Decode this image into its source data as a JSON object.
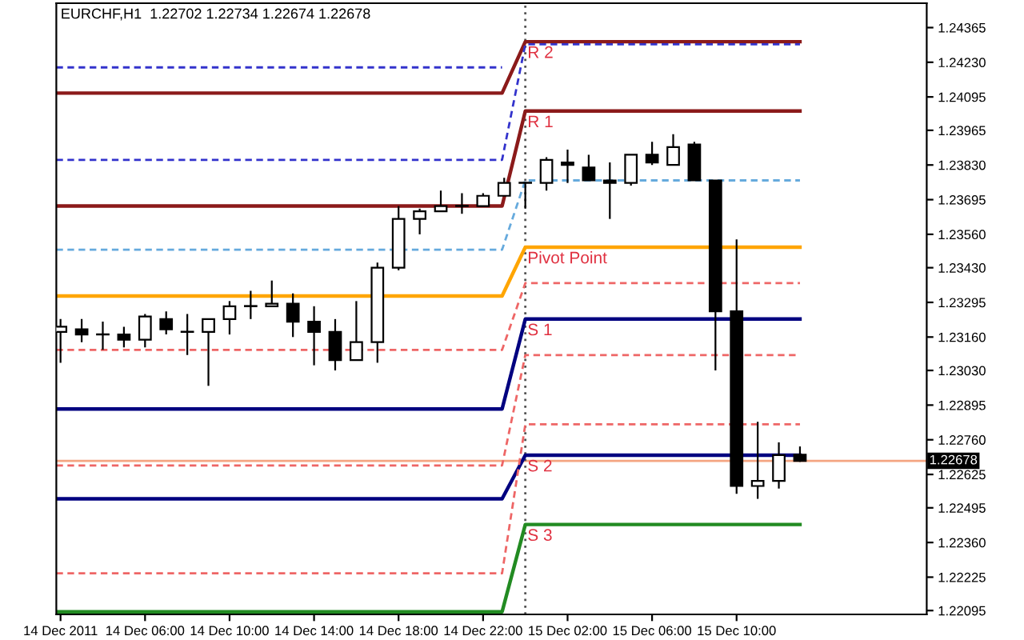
{
  "chart_data": {
    "type": "candlestick",
    "title": "EURCHF,H1  1.22702 1.22734 1.22674 1.22678",
    "x": [
      "2011-12-14T02:00",
      "2011-12-14T03:00",
      "2011-12-14T04:00",
      "2011-12-14T05:00",
      "2011-12-14T06:00",
      "2011-12-14T07:00",
      "2011-12-14T08:00",
      "2011-12-14T09:00",
      "2011-12-14T10:00",
      "2011-12-14T11:00",
      "2011-12-14T12:00",
      "2011-12-14T13:00",
      "2011-12-14T14:00",
      "2011-12-14T15:00",
      "2011-12-14T16:00",
      "2011-12-14T17:00",
      "2011-12-14T18:00",
      "2011-12-14T19:00",
      "2011-12-14T20:00",
      "2011-12-14T21:00",
      "2011-12-14T22:00",
      "2011-12-14T23:00",
      "2011-12-15T00:00",
      "2011-12-15T01:00",
      "2011-12-15T02:00",
      "2011-12-15T03:00",
      "2011-12-15T04:00",
      "2011-12-15T05:00",
      "2011-12-15T06:00",
      "2011-12-15T07:00",
      "2011-12-15T08:00",
      "2011-12-15T09:00",
      "2011-12-15T10:00",
      "2011-12-15T11:00",
      "2011-12-15T12:00",
      "2011-12-15T13:00"
    ],
    "ohlc": [
      [
        1.2318,
        1.2323,
        1.2306,
        1.232
      ],
      [
        1.2319,
        1.2323,
        1.2314,
        1.2317
      ],
      [
        1.2317,
        1.2322,
        1.2311,
        1.2317
      ],
      [
        1.2317,
        1.232,
        1.2312,
        1.2315
      ],
      [
        1.2315,
        1.2325,
        1.2312,
        1.2324
      ],
      [
        1.2323,
        1.2326,
        1.2317,
        1.2319
      ],
      [
        1.2318,
        1.2325,
        1.2309,
        1.2318
      ],
      [
        1.2318,
        1.2323,
        1.2297,
        1.2323
      ],
      [
        1.2323,
        1.233,
        1.2317,
        1.2328
      ],
      [
        1.2328,
        1.2334,
        1.2323,
        1.2328
      ],
      [
        1.2328,
        1.2338,
        1.2328,
        1.2329
      ],
      [
        1.2329,
        1.2333,
        1.2316,
        1.2322
      ],
      [
        1.2322,
        1.2328,
        1.2305,
        1.2318
      ],
      [
        1.2318,
        1.2323,
        1.2303,
        1.2307
      ],
      [
        1.2307,
        1.233,
        1.2307,
        1.2314
      ],
      [
        1.2314,
        1.2345,
        1.2306,
        1.2343
      ],
      [
        1.2343,
        1.2367,
        1.2342,
        1.2362
      ],
      [
        1.2362,
        1.2366,
        1.2356,
        1.2365
      ],
      [
        1.2365,
        1.2373,
        1.2365,
        1.2367
      ],
      [
        1.2367,
        1.2372,
        1.2364,
        1.2367
      ],
      [
        1.2367,
        1.2372,
        1.2367,
        1.2371
      ],
      [
        1.2371,
        1.2378,
        1.2371,
        1.2376
      ],
      [
        1.2376,
        1.2376,
        1.2366,
        1.2376
      ],
      [
        1.2376,
        1.2386,
        1.2373,
        1.2385
      ],
      [
        1.2384,
        1.2389,
        1.2376,
        1.2383
      ],
      [
        1.2382,
        1.2387,
        1.2377,
        1.2377
      ],
      [
        1.2377,
        1.2384,
        1.2362,
        1.2376
      ],
      [
        1.2376,
        1.2387,
        1.2375,
        1.2387
      ],
      [
        1.2387,
        1.2392,
        1.2383,
        1.2384
      ],
      [
        1.2383,
        1.2395,
        1.2383,
        1.239
      ],
      [
        1.2391,
        1.2392,
        1.2377,
        1.2377
      ],
      [
        1.2377,
        1.2377,
        1.2303,
        1.2326
      ],
      [
        1.2326,
        1.2354,
        1.2255,
        1.2258
      ],
      [
        1.2258,
        1.2283,
        1.2253,
        1.226
      ],
      [
        1.226,
        1.2275,
        1.2257,
        1.227
      ],
      [
        1.22702,
        1.22734,
        1.22674,
        1.22678
      ]
    ],
    "colors": [
      "#ffffff",
      "#000000",
      "#ffffff",
      "#000000",
      "#ffffff",
      "#000000",
      "#ffffff",
      "#ffffff",
      "#ffffff",
      "#ffffff",
      "#ffffff",
      "#000000",
      "#000000",
      "#000000",
      "#ffffff",
      "#ffffff",
      "#ffffff",
      "#ffffff",
      "#ffffff",
      "#ffffff",
      "#ffffff",
      "#ffffff",
      "#ffffff",
      "#ffffff",
      "#000000",
      "#000000",
      "#000000",
      "#ffffff",
      "#000000",
      "#ffffff",
      "#000000",
      "#000000",
      "#000000",
      "#ffffff",
      "#ffffff",
      "#000000"
    ],
    "series": [
      {
        "type": "line",
        "color": "#8b1a1a",
        "x": [
          "2011-12-14T01:48",
          "2011-12-14T22:54",
          "2011-12-15T00:00",
          "2011-12-15T13:00"
        ],
        "values": [
          1.2411,
          1.2411,
          1.2431,
          1.2431
        ]
      },
      {
        "type": "line",
        "color": "#8b1a1a",
        "x": [
          "2011-12-14T01:48",
          "2011-12-14T22:54",
          "2011-12-15T00:00",
          "2011-12-15T13:00"
        ],
        "values": [
          1.2367,
          1.2367,
          1.2404,
          1.2404
        ]
      },
      {
        "type": "line",
        "color": "#ffa500",
        "x": [
          "2011-12-14T01:48",
          "2011-12-14T22:54",
          "2011-12-15T00:00",
          "2011-12-15T13:00"
        ],
        "values": [
          1.2332,
          1.2332,
          1.2351,
          1.2351
        ]
      },
      {
        "type": "line",
        "color": "#000080",
        "x": [
          "2011-12-14T01:48",
          "2011-12-14T22:54",
          "2011-12-15T00:00",
          "2011-12-15T13:00"
        ],
        "values": [
          1.2288,
          1.2288,
          1.2323,
          1.2323
        ]
      },
      {
        "type": "line",
        "color": "#000080",
        "x": [
          "2011-12-14T01:48",
          "2011-12-14T22:54",
          "2011-12-15T00:00",
          "2011-12-15T13:00"
        ],
        "values": [
          1.2253,
          1.2253,
          1.227,
          1.227
        ]
      },
      {
        "type": "line",
        "color": "#228b22",
        "x": [
          "2011-12-14T01:48",
          "2011-12-14T22:54",
          "2011-12-15T00:00",
          "2011-12-15T13:00"
        ],
        "values": [
          1.2209,
          1.2209,
          1.2243,
          1.2243
        ]
      },
      {
        "type": "line",
        "color": "#3333cc",
        "line_style": "dashed",
        "x": [
          "2011-12-14T01:48",
          "2011-12-14T22:54"
        ],
        "values": [
          1.2421,
          1.2421
        ]
      },
      {
        "type": "line",
        "color": "#3333cc",
        "line_style": "dashed",
        "x": [
          "2011-12-14T01:48",
          "2011-12-14T22:54",
          "2011-12-15T00:00",
          "2011-12-15T13:00"
        ],
        "values": [
          1.2385,
          1.2385,
          1.243,
          1.243
        ]
      },
      {
        "type": "line",
        "color": "#66aadd",
        "line_style": "dashed",
        "x": [
          "2011-12-14T01:48",
          "2011-12-14T22:54",
          "2011-12-15T00:00",
          "2011-12-15T13:00"
        ],
        "values": [
          1.235,
          1.235,
          1.2377,
          1.2377
        ]
      },
      {
        "type": "line",
        "color": "#ee6666",
        "line_style": "dashed",
        "x": [
          "2011-12-14T01:48",
          "2011-12-14T22:54",
          "2011-12-15T00:00",
          "2011-12-15T13:00"
        ],
        "values": [
          1.2311,
          1.2311,
          1.2337,
          1.2337
        ]
      },
      {
        "type": "line",
        "color": "#ee6666",
        "line_style": "dashed",
        "x": [
          "2011-12-14T01:48",
          "2011-12-14T22:54",
          "2011-12-15T00:00",
          "2011-12-15T13:00"
        ],
        "values": [
          1.2266,
          1.2266,
          1.2309,
          1.2309
        ]
      },
      {
        "type": "line",
        "color": "#ee6666",
        "line_style": "dashed",
        "x": [
          "2011-12-14T01:48",
          "2011-12-14T22:54",
          "2011-12-15T00:00",
          "2011-12-15T13:00"
        ],
        "values": [
          1.2224,
          1.2224,
          1.2282,
          1.2282
        ]
      }
    ],
    "ref_lines": [
      {
        "axis": "y",
        "value": 1.22678,
        "label": "1.22678",
        "color": "#f4a582"
      },
      {
        "axis": "x",
        "value": "2011-12-15T00:00",
        "color": "#555555",
        "line_style": "dotted"
      }
    ],
    "annotations": [
      {
        "text": "R 2",
        "x": "2011-12-15T00:06",
        "y": 1.2431
      },
      {
        "text": "R 1",
        "x": "2011-12-15T00:06",
        "y": 1.2404
      },
      {
        "text": "Pivot Point",
        "x": "2011-12-15T00:06",
        "y": 1.2351
      },
      {
        "text": "S 1",
        "x": "2011-12-15T00:06",
        "y": 1.2323
      },
      {
        "text": "S 2",
        "x": "2011-12-15T00:06",
        "y": 1.227
      },
      {
        "text": "S 3",
        "x": "2011-12-15T00:06",
        "y": 1.2243
      }
    ],
    "xlim": [
      "2011-12-14T01:48",
      "2011-12-15T19:00"
    ],
    "ylim": [
      1.2208,
      1.2446
    ],
    "xticks": [
      {
        "value": "2011-12-14T02:00",
        "label": "14 Dec 2011"
      },
      {
        "value": "2011-12-14T06:00",
        "label": "14 Dec 06:00"
      },
      {
        "value": "2011-12-14T10:00",
        "label": "14 Dec 10:00"
      },
      {
        "value": "2011-12-14T14:00",
        "label": "14 Dec 14:00"
      },
      {
        "value": "2011-12-14T18:00",
        "label": "14 Dec 18:00"
      },
      {
        "value": "2011-12-14T22:00",
        "label": "14 Dec 22:00"
      },
      {
        "value": "2011-12-15T02:00",
        "label": "15 Dec 02:00"
      },
      {
        "value": "2011-12-15T06:00",
        "label": "15 Dec 06:00"
      },
      {
        "value": "2011-12-15T10:00",
        "label": "15 Dec 10:00"
      }
    ],
    "yticks": [
      1.24365,
      {
        "value": 1.2423,
        "label": "1.24230"
      },
      1.24095,
      1.23965,
      {
        "value": 1.2383,
        "label": "1.23830"
      },
      1.23695,
      {
        "value": 1.2356,
        "label": "1.23560"
      },
      {
        "value": 1.2343,
        "label": "1.23430"
      },
      1.23295,
      {
        "value": 1.2316,
        "label": "1.23160"
      },
      {
        "value": 1.2303,
        "label": "1.23030"
      },
      1.22895,
      {
        "value": 1.2276,
        "label": "1.22760"
      },
      1.22625,
      1.22495,
      {
        "value": 1.2236,
        "label": "1.22360"
      },
      1.22225,
      1.22095
    ],
    "grid": false,
    "legend": false
  }
}
